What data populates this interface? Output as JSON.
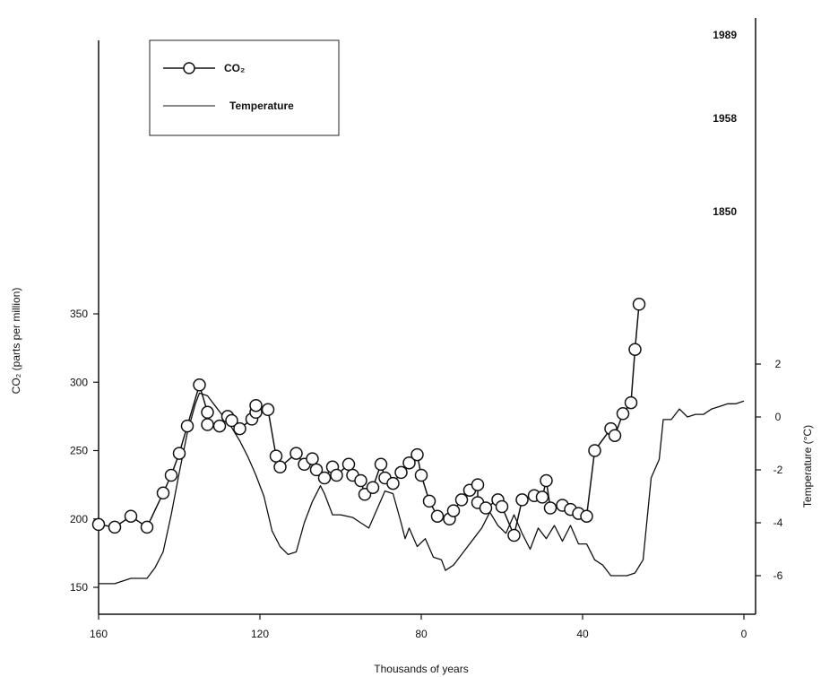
{
  "chart_data": {
    "type": "line",
    "x_axis": {
      "label": "Thousands of years",
      "range": [
        160,
        0
      ],
      "reversed": true,
      "ticks": [
        "160",
        "120",
        "80",
        "40",
        "0"
      ],
      "tick_values": [
        160,
        120,
        80,
        40,
        0
      ]
    },
    "y_axis_left": {
      "label": "CO₂ (parts per million)",
      "range": [
        150,
        350
      ],
      "ticks": [
        "150",
        "200",
        "250",
        "300",
        "350"
      ],
      "tick_values": [
        150,
        200,
        250,
        300,
        350
      ]
    },
    "y_axis_right": {
      "label": "Temperature (°C)",
      "range": [
        -6,
        2
      ],
      "ticks": [
        "-6",
        "-4",
        "-2",
        "0",
        "2"
      ],
      "tick_values": [
        -6,
        -4,
        -2,
        0,
        2
      ]
    },
    "grid": false,
    "legend": {
      "placement": "top-left",
      "entries": [
        {
          "label": "CO₂",
          "marker": "circle"
        },
        {
          "label": "Temperature",
          "marker": "none"
        }
      ]
    },
    "annotations": [
      {
        "text": "1989",
        "x": 0,
        "y": 357
      },
      {
        "text": "1958",
        "x": 0,
        "y": 324
      },
      {
        "text": "1850",
        "x": 0,
        "y": 285
      }
    ],
    "series": [
      {
        "name": "CO₂",
        "axis": "left",
        "points": [
          [
            160,
            196
          ],
          [
            156,
            194
          ],
          [
            152,
            202
          ],
          [
            148,
            194
          ],
          [
            144,
            219
          ],
          [
            142,
            232
          ],
          [
            140,
            248
          ],
          [
            138,
            268
          ],
          [
            135,
            298
          ],
          [
            133,
            278
          ],
          [
            133,
            269
          ],
          [
            130,
            268
          ],
          [
            128,
            275
          ],
          [
            127,
            272
          ],
          [
            125,
            266
          ],
          [
            122,
            273
          ],
          [
            121,
            278
          ],
          [
            121,
            283
          ],
          [
            118,
            280
          ],
          [
            116,
            246
          ],
          [
            115,
            238
          ],
          [
            111,
            248
          ],
          [
            109,
            240
          ],
          [
            107,
            244
          ],
          [
            106,
            236
          ],
          [
            104,
            230
          ],
          [
            102,
            238
          ],
          [
            101,
            232
          ],
          [
            98,
            240
          ],
          [
            97,
            232
          ],
          [
            95,
            228
          ],
          [
            94,
            218
          ],
          [
            92,
            223
          ],
          [
            90,
            240
          ],
          [
            89,
            230
          ],
          [
            87,
            226
          ],
          [
            85,
            234
          ],
          [
            83,
            241
          ],
          [
            81,
            247
          ],
          [
            80,
            232
          ],
          [
            78,
            213
          ],
          [
            76,
            202
          ],
          [
            73,
            200
          ],
          [
            72,
            206
          ],
          [
            70,
            214
          ],
          [
            68,
            221
          ],
          [
            66,
            225
          ],
          [
            66,
            212
          ],
          [
            64,
            208
          ],
          [
            61,
            214
          ],
          [
            60,
            209
          ],
          [
            57,
            188
          ],
          [
            55,
            214
          ],
          [
            52,
            217
          ],
          [
            50,
            216
          ],
          [
            49,
            228
          ],
          [
            48,
            208
          ],
          [
            45,
            210
          ],
          [
            43,
            207
          ],
          [
            41,
            204
          ],
          [
            39,
            202
          ],
          [
            37,
            250
          ],
          [
            33,
            266
          ],
          [
            32,
            261
          ],
          [
            30,
            277
          ],
          [
            28,
            285
          ],
          [
            27,
            324
          ],
          [
            26,
            357
          ]
        ]
      },
      {
        "name": "Temperature",
        "axis": "right",
        "points": [
          [
            160,
            -6.3
          ],
          [
            156,
            -6.3
          ],
          [
            152,
            -6.1
          ],
          [
            148,
            -6.1
          ],
          [
            146,
            -5.7
          ],
          [
            144,
            -5.1
          ],
          [
            142,
            -3.7
          ],
          [
            140,
            -2.1
          ],
          [
            138,
            -0.6
          ],
          [
            136,
            0.5
          ],
          [
            135,
            0.9
          ],
          [
            133,
            0.8
          ],
          [
            131,
            0.4
          ],
          [
            129,
            0.0
          ],
          [
            127,
            -0.4
          ],
          [
            125,
            -0.9
          ],
          [
            123,
            -1.5
          ],
          [
            121,
            -2.2
          ],
          [
            119,
            -3.0
          ],
          [
            117,
            -4.3
          ],
          [
            115,
            -4.9
          ],
          [
            113,
            -5.2
          ],
          [
            111,
            -5.1
          ],
          [
            109,
            -4.0
          ],
          [
            107,
            -3.2
          ],
          [
            105,
            -2.6
          ],
          [
            104,
            -2.9
          ],
          [
            102,
            -3.7
          ],
          [
            100,
            -3.7
          ],
          [
            97,
            -3.8
          ],
          [
            95,
            -4.0
          ],
          [
            93,
            -4.2
          ],
          [
            91,
            -3.5
          ],
          [
            89,
            -2.8
          ],
          [
            87,
            -2.9
          ],
          [
            85,
            -4.0
          ],
          [
            84,
            -4.6
          ],
          [
            83,
            -4.2
          ],
          [
            81,
            -4.9
          ],
          [
            79,
            -4.6
          ],
          [
            77,
            -5.3
          ],
          [
            75,
            -5.4
          ],
          [
            74,
            -5.8
          ],
          [
            72,
            -5.6
          ],
          [
            70,
            -5.2
          ],
          [
            67,
            -4.6
          ],
          [
            65,
            -4.2
          ],
          [
            63,
            -3.6
          ],
          [
            61,
            -4.1
          ],
          [
            59,
            -4.4
          ],
          [
            57,
            -3.7
          ],
          [
            55,
            -4.4
          ],
          [
            53,
            -5.0
          ],
          [
            51,
            -4.2
          ],
          [
            49,
            -4.6
          ],
          [
            47,
            -4.1
          ],
          [
            45,
            -4.7
          ],
          [
            43,
            -4.1
          ],
          [
            41,
            -4.8
          ],
          [
            39,
            -4.8
          ],
          [
            37,
            -5.4
          ],
          [
            35,
            -5.6
          ],
          [
            33,
            -6.0
          ],
          [
            31,
            -6.0
          ],
          [
            29,
            -6.0
          ],
          [
            27,
            -5.9
          ],
          [
            25,
            -5.4
          ],
          [
            23,
            -2.3
          ],
          [
            21,
            -1.6
          ],
          [
            20,
            -0.1
          ],
          [
            18,
            -0.1
          ],
          [
            16,
            0.3
          ],
          [
            14,
            0.0
          ],
          [
            12,
            0.1
          ],
          [
            10,
            0.1
          ],
          [
            8,
            0.3
          ],
          [
            6,
            0.4
          ],
          [
            4,
            0.5
          ],
          [
            2,
            0.5
          ],
          [
            0,
            0.6
          ]
        ]
      }
    ]
  }
}
